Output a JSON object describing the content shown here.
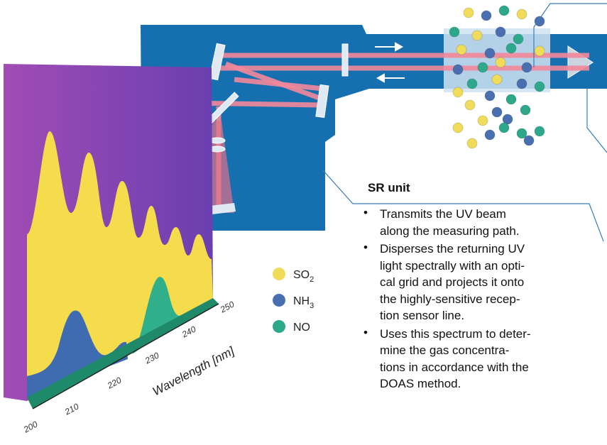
{
  "legend": [
    {
      "label": "SO",
      "subscript": "2"
    },
    {
      "label": "NH",
      "subscript": "3"
    },
    {
      "label": "NO"
    }
  ],
  "spectrum": {
    "axis_label": "Wavelength [nm]",
    "ticks": [
      200,
      210,
      220,
      230,
      240,
      250
    ]
  },
  "description": {
    "title": "SR unit",
    "bullets": [
      [
        "Transmits the UV beam",
        "along the measuring path."
      ],
      [
        "Disperses the returning UV",
        "light spectrally with an opti-",
        "cal grid and projects it onto",
        "the highly-sensitive recep-",
        "tion sensor line."
      ],
      [
        "Uses this spectrum to deter-",
        "mine the gas concentra-",
        "tions in accordance with the",
        "DOAS method."
      ]
    ]
  }
}
